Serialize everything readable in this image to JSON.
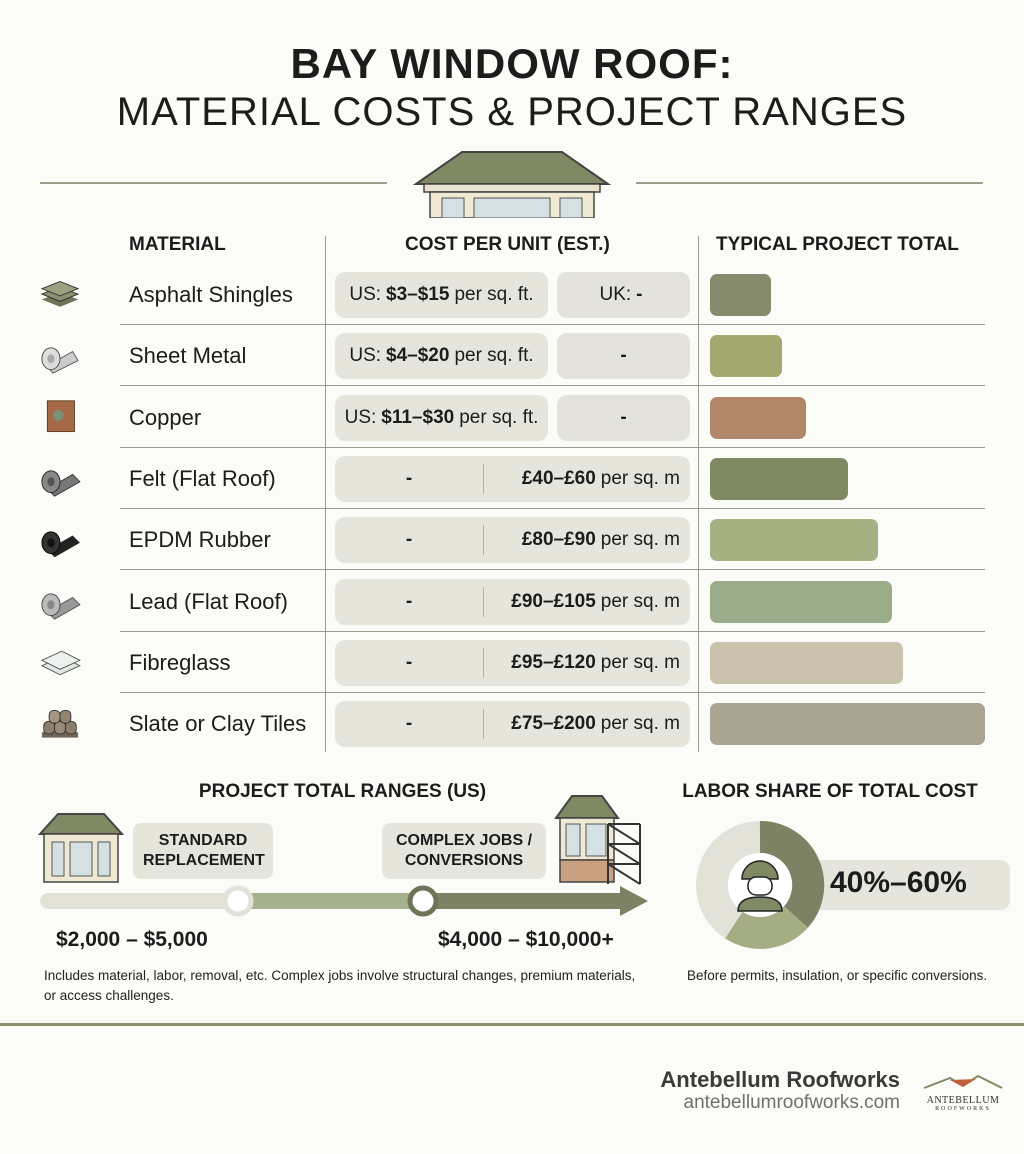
{
  "title": {
    "line1": "BAY WINDOW ROOF:",
    "line2": "MATERIAL COSTS & PROJECT RANGES"
  },
  "table": {
    "headers": {
      "material": "MATERIAL",
      "cost": "COST PER UNIT (EST.)",
      "total": "TYPICAL PROJECT TOTAL"
    },
    "rows": [
      {
        "icon": "asphalt-shingles-icon",
        "name": "Asphalt Shingles",
        "us_prefix": "US:",
        "us_value": "$3–$15",
        "us_unit": "per sq. ft.",
        "uk_prefix": "UK:",
        "uk_value": "-",
        "bar_level": 0.22,
        "bar_color": "#858b6c"
      },
      {
        "icon": "sheet-metal-icon",
        "name": "Sheet Metal",
        "us_prefix": "US:",
        "us_value": "$4–$20",
        "us_unit": "per sq. ft.",
        "uk_prefix": "",
        "uk_value": "-",
        "bar_level": 0.26,
        "bar_color": "#a2a86e"
      },
      {
        "icon": "copper-icon",
        "name": "Copper",
        "us_prefix": "US:",
        "us_value": "$11–$30",
        "us_unit": "per sq. ft.",
        "uk_prefix": "",
        "uk_value": "-",
        "bar_level": 0.35,
        "bar_color": "#b0876b"
      },
      {
        "icon": "felt-roll-icon",
        "name": "Felt (Flat Roof)",
        "us_value": "-",
        "uk_value": "£40–£60",
        "uk_unit": "per sq. m",
        "bar_level": 0.5,
        "bar_color": "#7f8a64"
      },
      {
        "icon": "epdm-rubber-icon",
        "name": "EPDM Rubber",
        "us_value": "-",
        "uk_value": "£80–£90",
        "uk_unit": "per sq. m",
        "bar_level": 0.61,
        "bar_color": "#a5b183"
      },
      {
        "icon": "lead-roll-icon",
        "name": "Lead (Flat Roof)",
        "us_value": "-",
        "uk_value": "£90–£105",
        "uk_unit": "per sq. m",
        "bar_level": 0.66,
        "bar_color": "#9bac8a"
      },
      {
        "icon": "fibreglass-icon",
        "name": "Fibreglass",
        "us_value": "-",
        "uk_value": "£95–£120",
        "uk_unit": "per sq. m",
        "bar_level": 0.7,
        "bar_color": "#c9c2ad"
      },
      {
        "icon": "slate-tiles-icon",
        "name": "Slate or Clay Tiles",
        "us_value": "-",
        "uk_value": "£75–£200",
        "uk_unit": "per sq. m",
        "bar_level": 1.0,
        "bar_color": "#aaa593"
      }
    ]
  },
  "ranges": {
    "heading": "PROJECT TOTAL RANGES (US)",
    "standard_label": "STANDARD REPLACEMENT",
    "complex_label": "COMPLEX JOBS / CONVERSIONS",
    "standard_range": "$2,000 – $5,000",
    "complex_range": "$4,000 – $10,000+",
    "note": "Includes material, labor, removal, etc. Complex jobs involve structural changes, premium materials, or access challenges."
  },
  "labor": {
    "heading": "LABOR SHARE OF TOTAL COST",
    "value": "40%–60%",
    "note": "Before permits, insulation, or specific conversions.",
    "colors": {
      "dark": "#7d8264",
      "light": "#a5ad84",
      "base": "#e3e2d8"
    }
  },
  "footer": {
    "company": "Antebellum Roofworks",
    "website": "antebellumroofworks.com",
    "logo_text": "ANTEBELLUM ROOFWORKS"
  }
}
